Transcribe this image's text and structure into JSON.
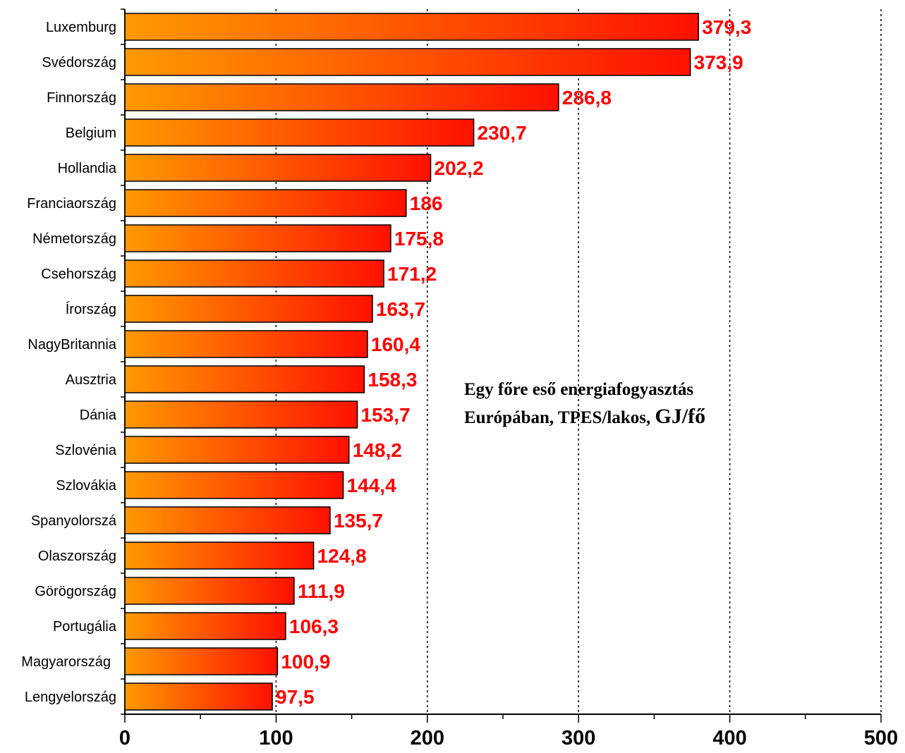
{
  "chart_data": {
    "type": "bar",
    "orientation": "horizontal",
    "title_line1": "Egy főre eső energiafogyasztás",
    "title_line2": "Európában, TPES/lakos,",
    "title_unit": "GJ/fő",
    "categories": [
      "Luxemburg",
      "Svédország",
      "Finnország",
      "Belgium",
      "Hollandia",
      "Franciaország",
      "Németország",
      "Csehország",
      "Írország",
      "NagyBritannia",
      "Ausztria",
      "Dánia",
      "Szlovénia",
      "Szlovákia",
      "Spanyolorszá",
      "Olaszország",
      "Görögország",
      "Portugália",
      "Magyarország",
      "Lengyelország"
    ],
    "values": [
      379.3,
      373.9,
      286.8,
      230.7,
      202.2,
      186,
      175.8,
      171.2,
      163.7,
      160.4,
      158.3,
      153.7,
      148.2,
      144.4,
      135.7,
      124.8,
      111.9,
      106.3,
      100.9,
      97.5
    ],
    "value_labels": [
      "379,3",
      "373,9",
      "286,8",
      "230,7",
      "202,2",
      "186",
      "175,8",
      "171,2",
      "163,7",
      "160,4",
      "158,3",
      "153,7",
      "148,2",
      "144,4",
      "135,7",
      "124,8",
      "111,9",
      "106,3",
      "100,9",
      "97,5"
    ],
    "highlight_category": "Magyarország",
    "xlim": [
      0,
      500
    ],
    "x_ticks": [
      0,
      100,
      200,
      300,
      400,
      500
    ],
    "x_tick_labels": [
      "0",
      "100",
      "200",
      "300",
      "400",
      "500"
    ],
    "grid": "vertical dotted",
    "colors": {
      "bar_gradient_start": "#ff9900",
      "bar_gradient_end": "#ff1100",
      "value_label": "#ff0000",
      "highlight_label": "#ff0000"
    }
  }
}
